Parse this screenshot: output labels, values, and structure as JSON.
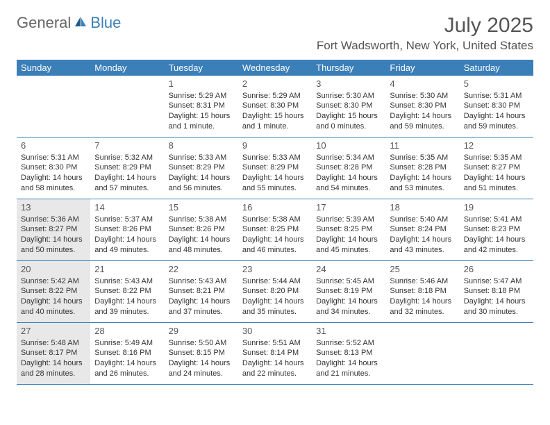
{
  "logo": {
    "general": "General",
    "blue": "Blue"
  },
  "title": "July 2025",
  "location": "Fort Wadsworth, New York, United States",
  "day_names": [
    "Sunday",
    "Monday",
    "Tuesday",
    "Wednesday",
    "Thursday",
    "Friday",
    "Saturday"
  ],
  "header_bg": "#3b7fb8",
  "shaded_bg": "#e8e8e8",
  "weeks": [
    [
      null,
      null,
      {
        "n": "1",
        "sr": "5:29 AM",
        "ss": "8:31 PM",
        "dl": "15 hours and 1 minute."
      },
      {
        "n": "2",
        "sr": "5:29 AM",
        "ss": "8:30 PM",
        "dl": "15 hours and 1 minute."
      },
      {
        "n": "3",
        "sr": "5:30 AM",
        "ss": "8:30 PM",
        "dl": "15 hours and 0 minutes."
      },
      {
        "n": "4",
        "sr": "5:30 AM",
        "ss": "8:30 PM",
        "dl": "14 hours and 59 minutes."
      },
      {
        "n": "5",
        "sr": "5:31 AM",
        "ss": "8:30 PM",
        "dl": "14 hours and 59 minutes."
      }
    ],
    [
      {
        "n": "6",
        "sr": "5:31 AM",
        "ss": "8:30 PM",
        "dl": "14 hours and 58 minutes."
      },
      {
        "n": "7",
        "sr": "5:32 AM",
        "ss": "8:29 PM",
        "dl": "14 hours and 57 minutes."
      },
      {
        "n": "8",
        "sr": "5:33 AM",
        "ss": "8:29 PM",
        "dl": "14 hours and 56 minutes."
      },
      {
        "n": "9",
        "sr": "5:33 AM",
        "ss": "8:29 PM",
        "dl": "14 hours and 55 minutes."
      },
      {
        "n": "10",
        "sr": "5:34 AM",
        "ss": "8:28 PM",
        "dl": "14 hours and 54 minutes."
      },
      {
        "n": "11",
        "sr": "5:35 AM",
        "ss": "8:28 PM",
        "dl": "14 hours and 53 minutes."
      },
      {
        "n": "12",
        "sr": "5:35 AM",
        "ss": "8:27 PM",
        "dl": "14 hours and 51 minutes."
      }
    ],
    [
      {
        "n": "13",
        "sr": "5:36 AM",
        "ss": "8:27 PM",
        "dl": "14 hours and 50 minutes.",
        "shaded": true
      },
      {
        "n": "14",
        "sr": "5:37 AM",
        "ss": "8:26 PM",
        "dl": "14 hours and 49 minutes."
      },
      {
        "n": "15",
        "sr": "5:38 AM",
        "ss": "8:26 PM",
        "dl": "14 hours and 48 minutes."
      },
      {
        "n": "16",
        "sr": "5:38 AM",
        "ss": "8:25 PM",
        "dl": "14 hours and 46 minutes."
      },
      {
        "n": "17",
        "sr": "5:39 AM",
        "ss": "8:25 PM",
        "dl": "14 hours and 45 minutes."
      },
      {
        "n": "18",
        "sr": "5:40 AM",
        "ss": "8:24 PM",
        "dl": "14 hours and 43 minutes."
      },
      {
        "n": "19",
        "sr": "5:41 AM",
        "ss": "8:23 PM",
        "dl": "14 hours and 42 minutes."
      }
    ],
    [
      {
        "n": "20",
        "sr": "5:42 AM",
        "ss": "8:22 PM",
        "dl": "14 hours and 40 minutes.",
        "shaded": true
      },
      {
        "n": "21",
        "sr": "5:43 AM",
        "ss": "8:22 PM",
        "dl": "14 hours and 39 minutes."
      },
      {
        "n": "22",
        "sr": "5:43 AM",
        "ss": "8:21 PM",
        "dl": "14 hours and 37 minutes."
      },
      {
        "n": "23",
        "sr": "5:44 AM",
        "ss": "8:20 PM",
        "dl": "14 hours and 35 minutes."
      },
      {
        "n": "24",
        "sr": "5:45 AM",
        "ss": "8:19 PM",
        "dl": "14 hours and 34 minutes."
      },
      {
        "n": "25",
        "sr": "5:46 AM",
        "ss": "8:18 PM",
        "dl": "14 hours and 32 minutes."
      },
      {
        "n": "26",
        "sr": "5:47 AM",
        "ss": "8:18 PM",
        "dl": "14 hours and 30 minutes."
      }
    ],
    [
      {
        "n": "27",
        "sr": "5:48 AM",
        "ss": "8:17 PM",
        "dl": "14 hours and 28 minutes.",
        "shaded": true
      },
      {
        "n": "28",
        "sr": "5:49 AM",
        "ss": "8:16 PM",
        "dl": "14 hours and 26 minutes."
      },
      {
        "n": "29",
        "sr": "5:50 AM",
        "ss": "8:15 PM",
        "dl": "14 hours and 24 minutes."
      },
      {
        "n": "30",
        "sr": "5:51 AM",
        "ss": "8:14 PM",
        "dl": "14 hours and 22 minutes."
      },
      {
        "n": "31",
        "sr": "5:52 AM",
        "ss": "8:13 PM",
        "dl": "14 hours and 21 minutes."
      },
      null,
      null
    ]
  ],
  "labels": {
    "sunrise": "Sunrise: ",
    "sunset": "Sunset: ",
    "daylight": "Daylight: "
  }
}
